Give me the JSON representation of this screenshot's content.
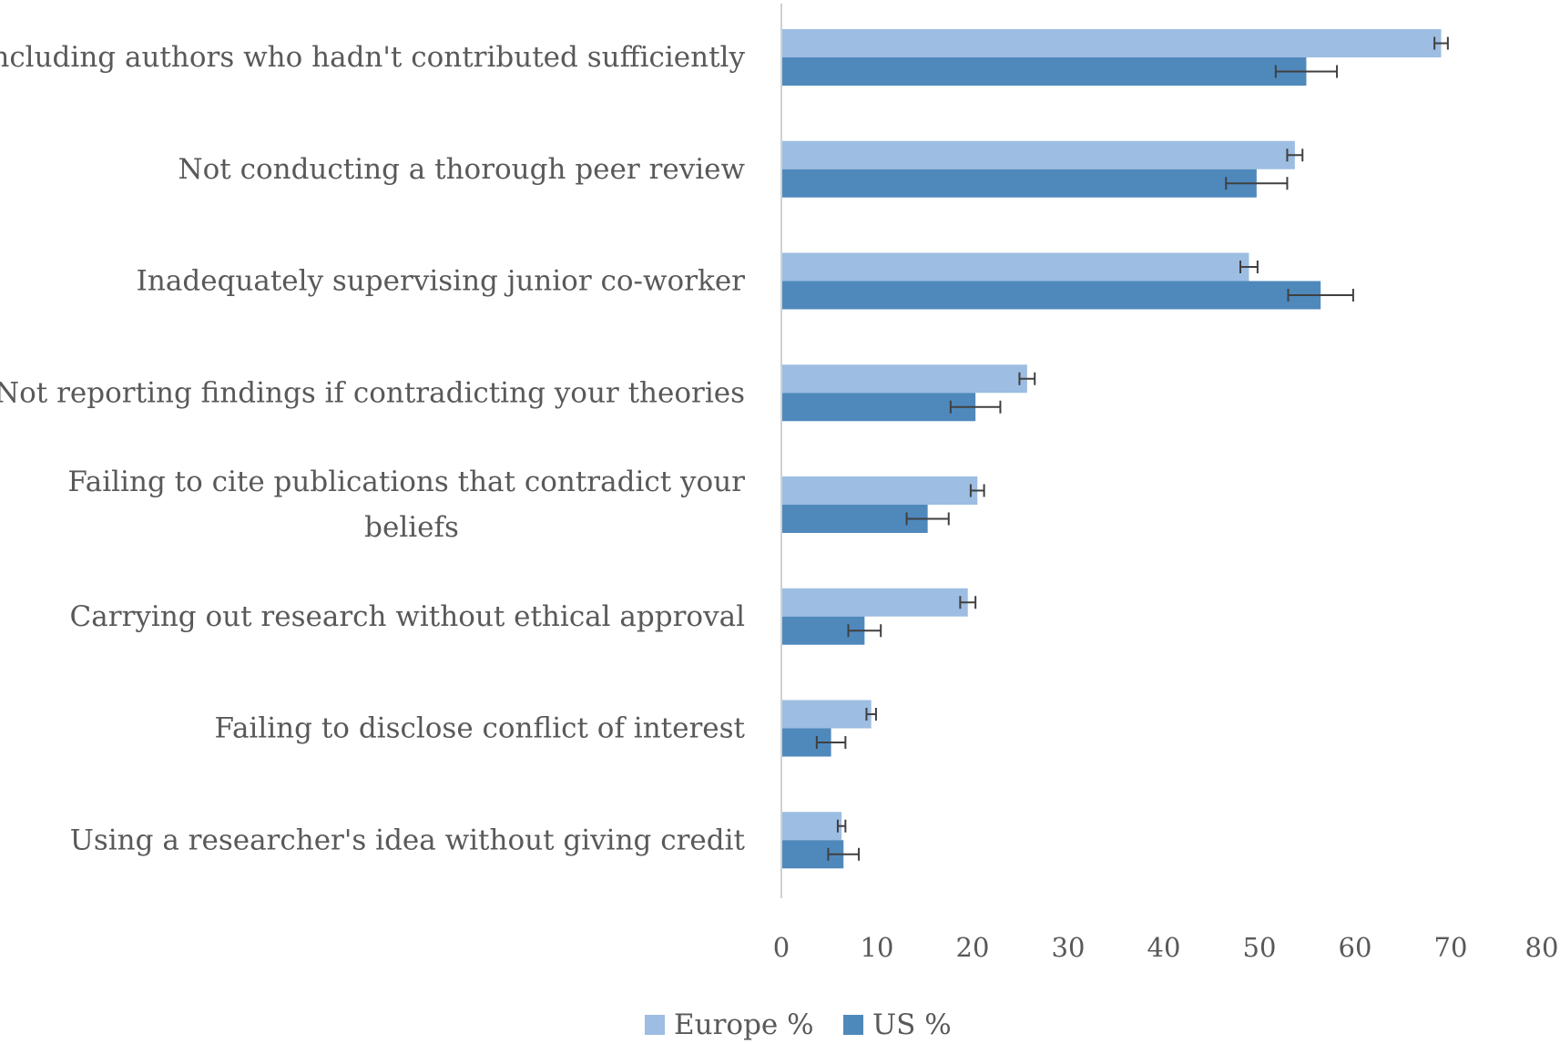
{
  "colors": {
    "europe": "#9dbde2",
    "us": "#4f89bc",
    "axis": "#d0d0d0",
    "error_bar": "#404040",
    "text": "#595959"
  },
  "chart_data": {
    "type": "bar",
    "orientation": "horizontal",
    "title": "",
    "xlabel": "",
    "ylabel": "",
    "xlim": [
      0,
      80
    ],
    "x_ticks": [
      0,
      10,
      20,
      30,
      40,
      50,
      60,
      70,
      80
    ],
    "grid": false,
    "legend_position": "bottom",
    "categories": [
      [
        "Including authors who hadn't contributed sufficiently"
      ],
      [
        "Not conducting a thorough peer review"
      ],
      [
        "Inadequately supervising junior co-worker"
      ],
      [
        "Not reporting findings if contradicting your theories"
      ],
      [
        "Failing to cite publications that contradict your",
        "beliefs"
      ],
      [
        "Carrying out research without ethical approval"
      ],
      [
        "Failing to disclose conflict of interest"
      ],
      [
        "Using a researcher's idea without giving credit"
      ]
    ],
    "series": [
      {
        "name": "Europe %",
        "color_key": "europe",
        "values": [
          69,
          53.7,
          48.9,
          25.7,
          20.5,
          19.5,
          9.4,
          6.3
        ],
        "errors": [
          0.7,
          0.8,
          0.9,
          0.8,
          0.7,
          0.8,
          0.5,
          0.4
        ]
      },
      {
        "name": "US %",
        "color_key": "us",
        "values": [
          54.9,
          49.7,
          56.4,
          20.3,
          15.3,
          8.7,
          5.2,
          6.5
        ],
        "errors": [
          3.2,
          3.2,
          3.4,
          2.6,
          2.2,
          1.7,
          1.5,
          1.6
        ]
      }
    ]
  }
}
